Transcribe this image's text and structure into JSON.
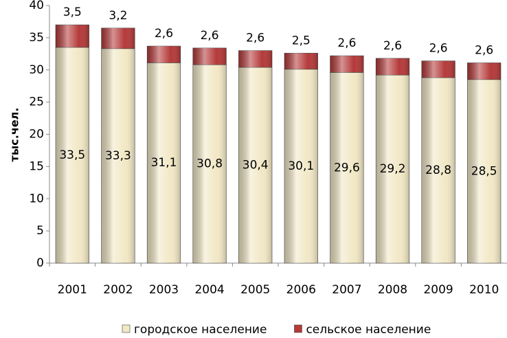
{
  "chart_data": {
    "type": "stacked-bar",
    "y_label": "тыс.чел.",
    "categories": [
      "2001",
      "2002",
      "2003",
      "2004",
      "2005",
      "2006",
      "2007",
      "2008",
      "2009",
      "2010"
    ],
    "series": [
      {
        "name": "городское население",
        "color": "#f2e8c6",
        "values": [
          33.5,
          33.3,
          31.1,
          30.8,
          30.4,
          30.1,
          29.6,
          29.2,
          28.8,
          28.5
        ],
        "value_labels": [
          "33,5",
          "33,3",
          "31,1",
          "30,8",
          "30,4",
          "30,1",
          "29,6",
          "29,2",
          "28,8",
          "28,5"
        ]
      },
      {
        "name": "сельское население",
        "color": "#b53a3a",
        "values": [
          3.5,
          3.2,
          2.6,
          2.6,
          2.6,
          2.5,
          2.6,
          2.6,
          2.6,
          2.6
        ],
        "value_labels": [
          "3,5",
          "3,2",
          "2,6",
          "2,6",
          "2,6",
          "2,5",
          "2,6",
          "2,6",
          "2,6",
          "2,6"
        ]
      }
    ],
    "ylim": [
      0,
      40
    ],
    "yticks": [
      0,
      5,
      10,
      15,
      20,
      25,
      30,
      35,
      40
    ],
    "grid": false,
    "legend": "bottom"
  }
}
